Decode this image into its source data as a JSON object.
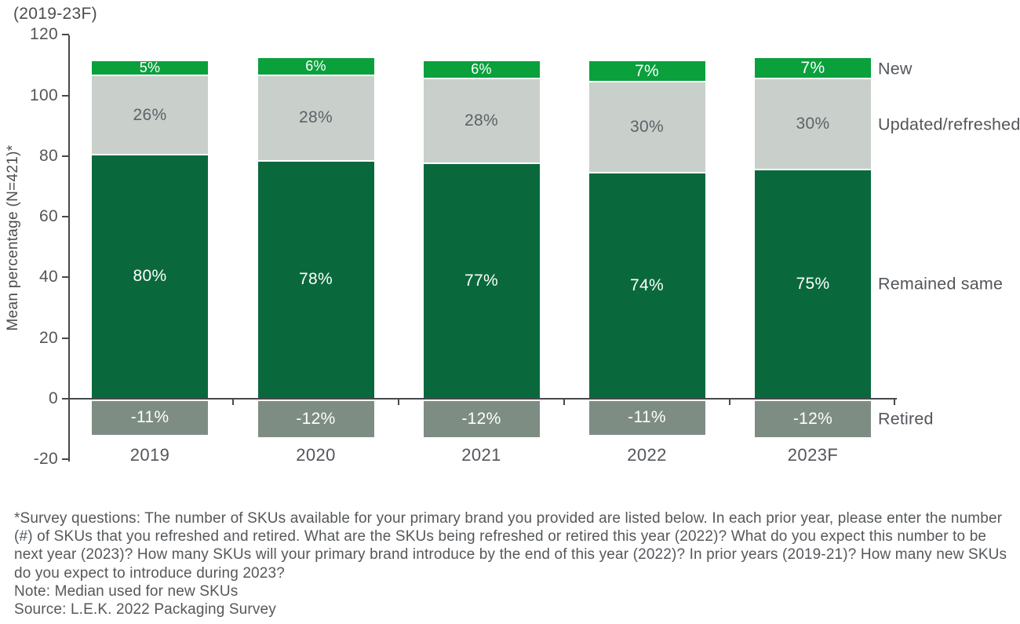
{
  "title": "(2019-23F)",
  "y_axis": {
    "label": "Mean percentage (N=421)*",
    "ticks": [
      120,
      100,
      80,
      60,
      40,
      20,
      0,
      -20
    ]
  },
  "chart_data": {
    "type": "bar",
    "stacked": true,
    "title": "(2019-23F)",
    "ylabel": "Mean percentage (N=421)*",
    "ylim": [
      -20,
      120
    ],
    "grid": false,
    "legend_position": "right",
    "value_suffix": "%",
    "categories": [
      "2019",
      "2020",
      "2021",
      "2022",
      "2023F"
    ],
    "series": [
      {
        "key": "new",
        "name": "New",
        "color": "#0aa03c",
        "label_color": "#ffffff",
        "values": [
          5,
          6,
          6,
          7,
          7
        ]
      },
      {
        "key": "updated-refreshed",
        "name": "Updated/refreshed",
        "color": "#c9cfcb",
        "label_color": "#5d6266",
        "values": [
          26,
          28,
          28,
          30,
          30
        ]
      },
      {
        "key": "remained-same",
        "name": "Remained same",
        "color": "#0a693c",
        "label_color": "#ffffff",
        "values": [
          80,
          78,
          77,
          74,
          75
        ]
      },
      {
        "key": "retired",
        "name": "Retired",
        "color": "#7e8d84",
        "label_color": "#ffffff",
        "values": [
          -11,
          -12,
          -12,
          -11,
          -12
        ]
      }
    ]
  },
  "footnotes": {
    "survey": "*Survey questions: The number of SKUs available for your primary brand you provided are listed below. In each prior year, please enter the number (#) of SKUs that you refreshed and retired. What are the SKUs being refreshed or retired this year (2022)? What do you expect this number to be next year (2023)? How many SKUs will your primary brand introduce by the end of this year (2022)? In prior years (2019-21)? How many new SKUs do you expect to introduce during 2023?",
    "note": "Note: Median used for new SKUs",
    "source": "Source: L.E.K. 2022 Packaging Survey"
  },
  "colors": {
    "axis": "#46494b",
    "text": "#53565a",
    "footnote": "#55585b"
  }
}
